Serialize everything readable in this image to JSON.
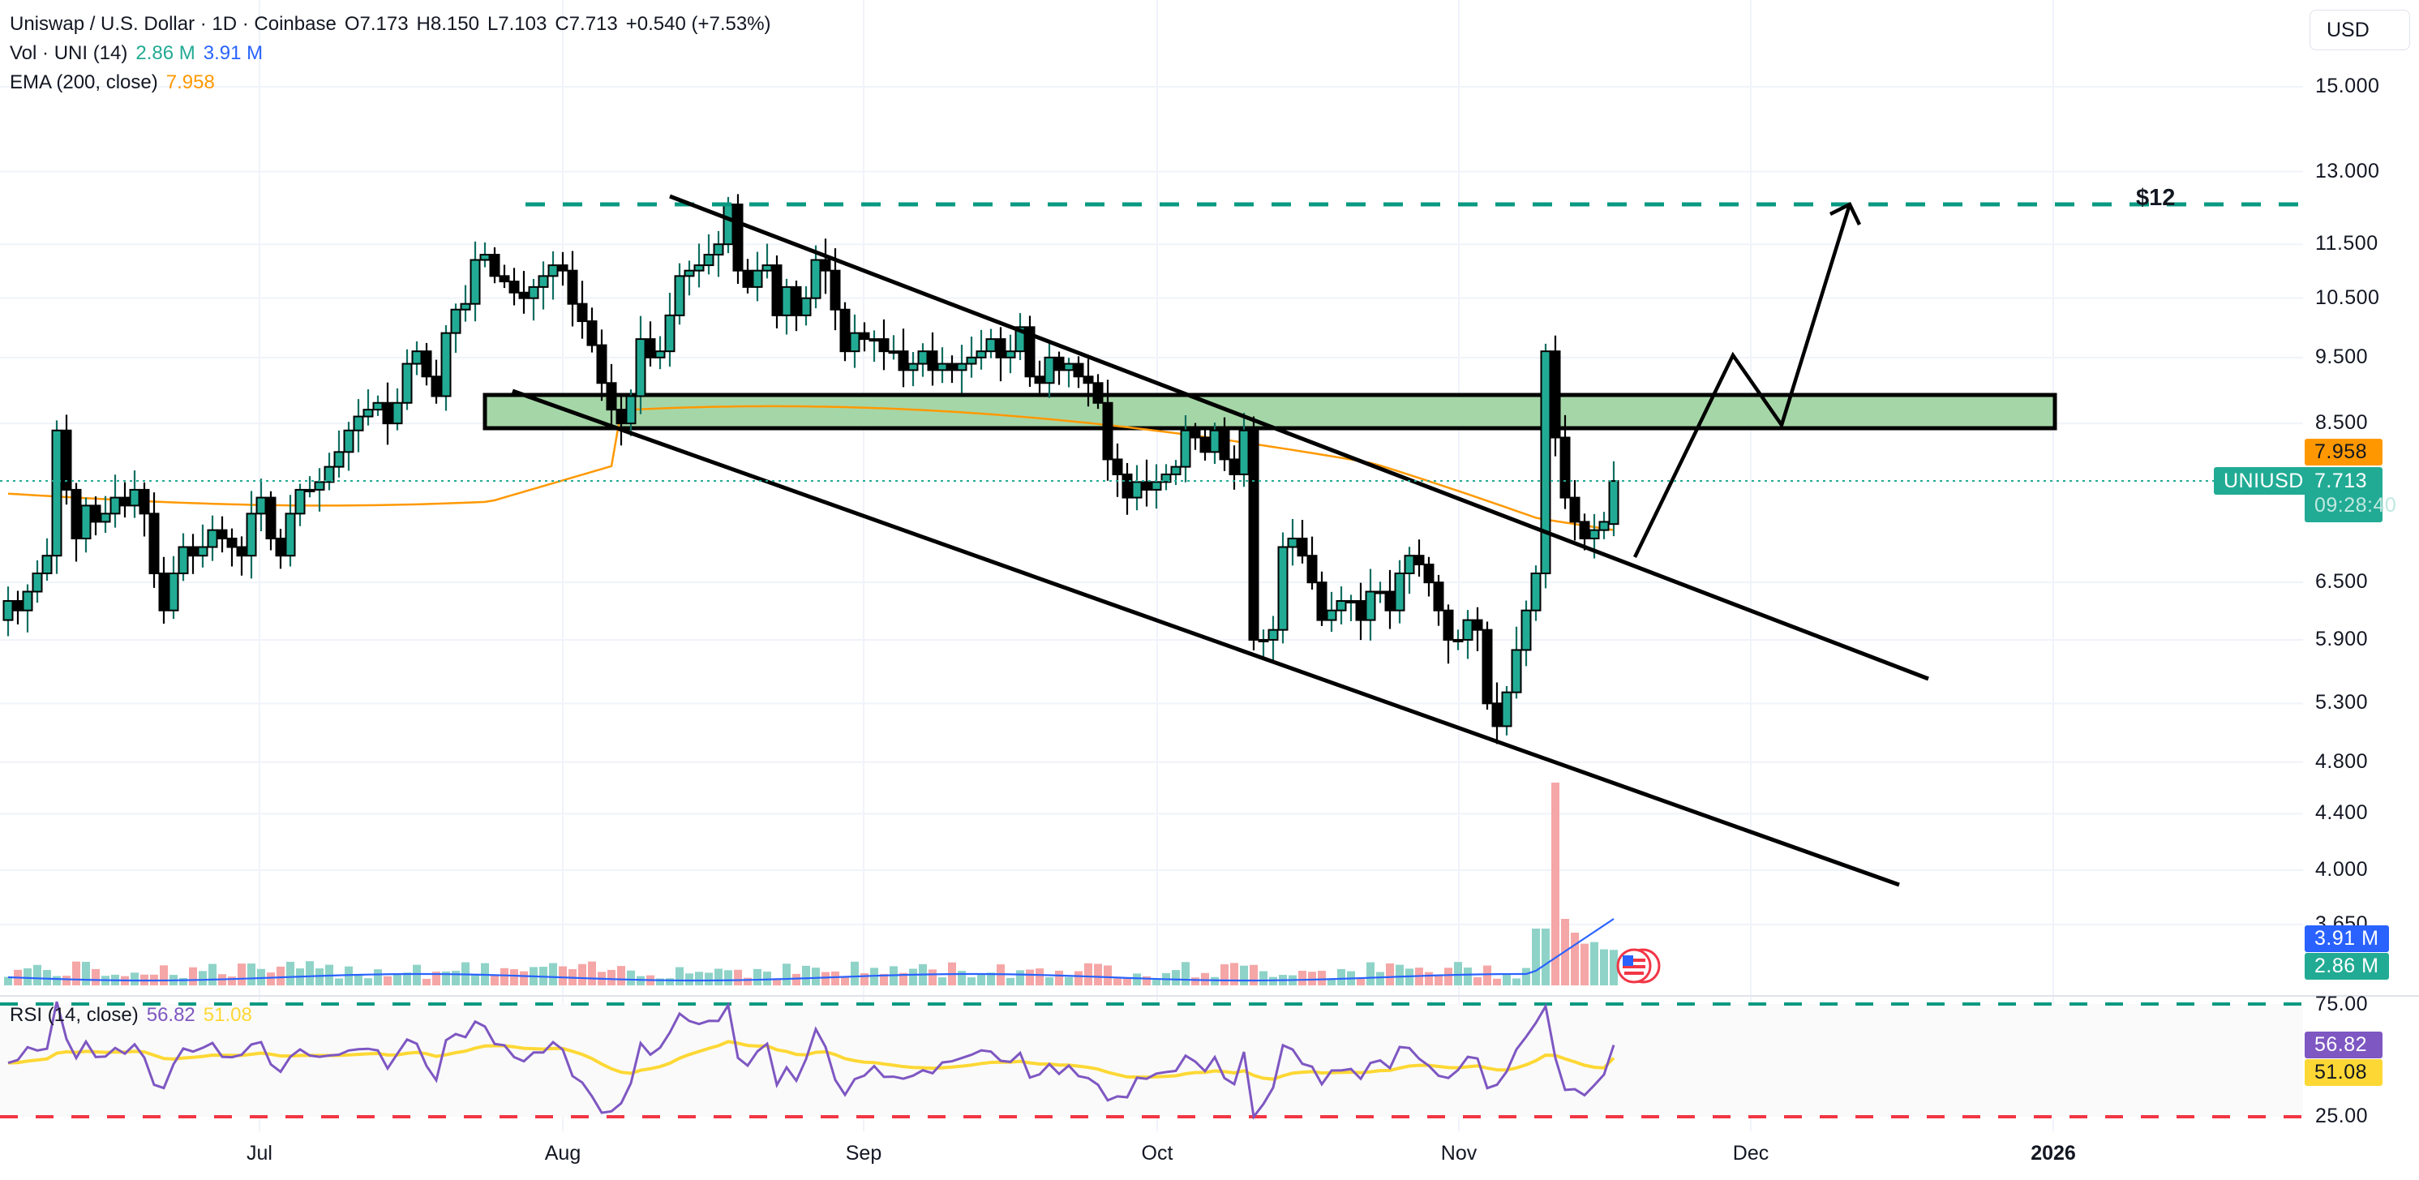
{
  "header": {
    "symbol_line": "Uniswap / U.S. Dollar · 1D · Coinbase",
    "ohlc": {
      "open": "O7.173",
      "high": "H8.150",
      "low": "L7.103",
      "close": "C7.713",
      "change": "+0.540 (+7.53%)"
    },
    "volume_label": "Vol · UNI (14)",
    "volume_value": "2.86 M",
    "volume_ma_value": "3.91 M",
    "ema_label": "EMA (200, close)",
    "ema_value": "7.958"
  },
  "currency_button": "USD",
  "price_axis": [
    "15.000",
    "13.000",
    "11.500",
    "10.500",
    "9.500",
    "8.500",
    "6.500",
    "5.900",
    "5.300",
    "4.800",
    "4.400",
    "4.000",
    "3.650"
  ],
  "price_tags": {
    "ema": "7.958",
    "last_price": "7.713",
    "countdown": "09:28:40",
    "symbol": "UNIUSD",
    "vol_ma": "3.91 M",
    "vol": "2.86 M"
  },
  "rsi": {
    "label": "RSI (14, close)",
    "value": "56.82",
    "ma_value": "51.08",
    "upper": "75.00",
    "lower": "25.00"
  },
  "time_axis": [
    "Jul",
    "Aug",
    "Sep",
    "Oct",
    "Nov",
    "Dec",
    "2026"
  ],
  "annotations": {
    "target_label": "$12"
  },
  "colors": {
    "up": "#22ab94",
    "down": "#000000",
    "vol_up": "#8fd3c8",
    "vol_down": "#f5a6a6",
    "ema": "#ff9800",
    "vol_ma": "#2962ff",
    "rsi": "#7e57c2",
    "rsi_ma": "#fdd835",
    "zone_fill": "#a5d6a7",
    "target_line": "#089981",
    "rsi_upper": "#089981",
    "rsi_lower": "#f23645"
  },
  "chart_data": {
    "type": "candlestick",
    "title": "Uniswap / U.S. Dollar · 1D · Coinbase",
    "xlabel": "",
    "ylabel": "USD",
    "x_ticks": [
      "Jul",
      "Aug",
      "Sep",
      "Oct",
      "Nov",
      "Dec",
      "2026"
    ],
    "y_ticks": [
      15.0,
      13.0,
      11.5,
      10.5,
      9.5,
      8.5,
      6.5,
      5.9,
      5.3,
      4.8,
      4.4,
      4.0,
      3.65
    ],
    "last": {
      "open": 7.173,
      "high": 8.15,
      "low": 7.103,
      "close": 7.713,
      "change": 0.54,
      "change_pct": 7.53
    },
    "ema200": 7.958,
    "closes": [
      6.3,
      6.2,
      6.4,
      6.6,
      6.8,
      8.4,
      7.6,
      7.0,
      7.4,
      7.2,
      7.3,
      7.5,
      7.4,
      7.6,
      7.3,
      6.6,
      6.2,
      6.6,
      6.9,
      6.8,
      6.9,
      7.1,
      7.0,
      6.9,
      6.8,
      7.3,
      7.5,
      7.0,
      6.8,
      7.3,
      7.6,
      7.6,
      7.7,
      7.9,
      8.1,
      8.4,
      8.6,
      8.7,
      8.8,
      8.5,
      8.8,
      9.4,
      9.6,
      9.2,
      8.9,
      9.9,
      10.3,
      10.4,
      11.2,
      11.3,
      10.9,
      10.8,
      10.6,
      10.5,
      10.7,
      10.9,
      11.1,
      11.0,
      10.4,
      10.1,
      9.7,
      9.1,
      8.7,
      8.5,
      8.9,
      9.8,
      9.5,
      9.6,
      10.2,
      10.9,
      11.0,
      11.1,
      11.3,
      11.5,
      12.3,
      11.0,
      10.7,
      11.0,
      11.1,
      10.2,
      10.7,
      10.2,
      10.5,
      11.2,
      11.0,
      10.3,
      9.6,
      9.9,
      9.8,
      9.8,
      9.6,
      9.6,
      9.3,
      9.4,
      9.6,
      9.3,
      9.4,
      9.3,
      9.4,
      9.5,
      9.6,
      9.8,
      9.5,
      9.6,
      10.0,
      9.2,
      9.1,
      9.5,
      9.3,
      9.4,
      9.2,
      9.1,
      8.8,
      8.0,
      7.8,
      7.5,
      7.7,
      7.6,
      7.7,
      7.8,
      7.9,
      8.4,
      8.3,
      8.1,
      8.4,
      8.0,
      7.8,
      8.4,
      5.9,
      5.9,
      6.0,
      6.9,
      7.0,
      6.8,
      6.5,
      6.1,
      6.2,
      6.3,
      6.3,
      6.1,
      6.4,
      6.4,
      6.2,
      6.6,
      6.8,
      6.7,
      6.5,
      6.2,
      5.9,
      5.9,
      6.1,
      6.0,
      5.3,
      5.1,
      5.4,
      5.8,
      6.2,
      6.6,
      9.6,
      8.3,
      7.5,
      7.2,
      7.0,
      7.1,
      7.2,
      7.713
    ],
    "volume_ma_last": 3.91,
    "volume_last": 2.86,
    "volume_unit": "M",
    "rsi": {
      "length": 14,
      "last": 56.82,
      "ma_last": 51.08,
      "upper": 75,
      "lower": 25
    },
    "annotations": [
      {
        "type": "horizontal_dashed",
        "price": 12.0,
        "label": "$12"
      },
      {
        "type": "zone",
        "price_top": 8.65,
        "price_bottom": 8.35,
        "color": "#a5d6a7"
      },
      {
        "type": "descending_channel_upper",
        "from_price": 12.3,
        "to_price": 5.55
      },
      {
        "type": "descending_channel_lower",
        "from_price": 8.85,
        "to_price": 3.95
      },
      {
        "type": "projection_path",
        "points": [
          6.85,
          9.5,
          8.4,
          12.0
        ]
      }
    ]
  }
}
